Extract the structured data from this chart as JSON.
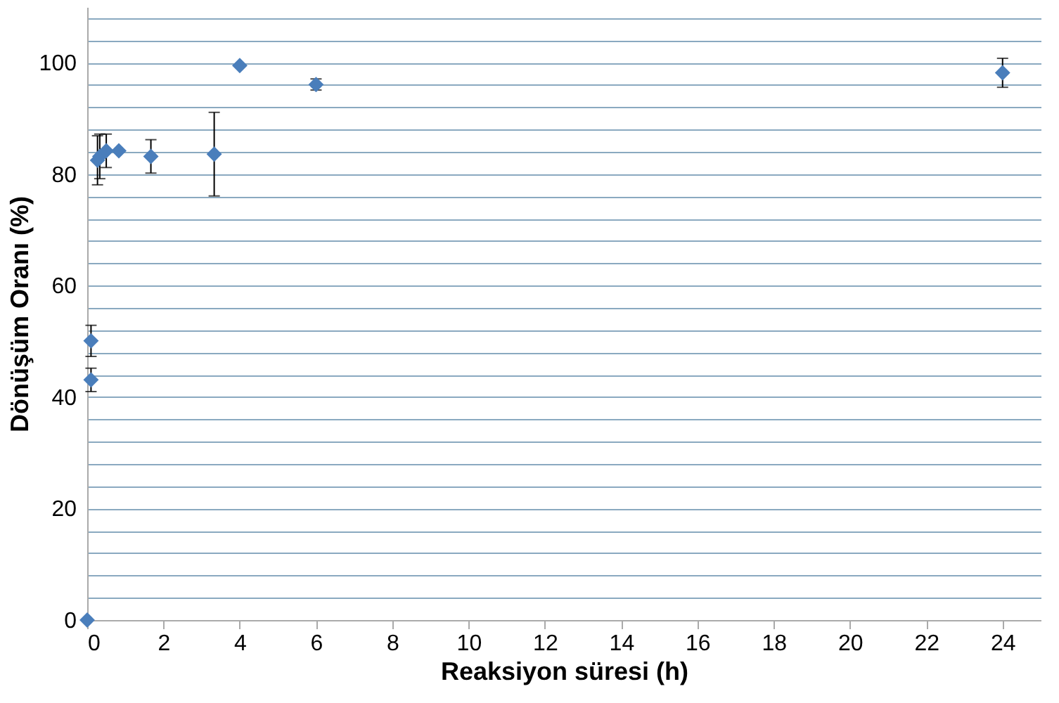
{
  "chart_data": {
    "type": "scatter",
    "xlabel": "Reaksiyon süresi (h)",
    "ylabel": "Dönüşüm Oranı (%)",
    "x": [
      0,
      0.1,
      0.1,
      0.27,
      0.33,
      0.5,
      0.83,
      1.67,
      3.33,
      4,
      6,
      24
    ],
    "series": [
      {
        "color": "#4a7ebb",
        "values": [
          0,
          50.1,
          43.1,
          82.5,
          83.2,
          84.2,
          84.2,
          83.2,
          83.6,
          99.5,
          96.1,
          98.2
        ],
        "errors": [
          null,
          2.8,
          2.1,
          4.4,
          4,
          3,
          null,
          3,
          7.5,
          null,
          1,
          2.6
        ]
      }
    ],
    "marker": "diamond",
    "grid": "y",
    "xlim": [
      0,
      25
    ],
    "xticks": [
      0,
      2,
      4,
      6,
      8,
      10,
      12,
      14,
      16,
      18,
      20,
      22,
      24
    ],
    "ylim": [
      0,
      110
    ],
    "yticks": [
      0,
      {
        "value": 4,
        "label": null
      },
      {
        "value": 8,
        "label": null
      },
      {
        "value": 12,
        "label": null
      },
      {
        "value": 16,
        "label": null
      },
      20,
      {
        "value": 24,
        "label": null
      },
      {
        "value": 28,
        "label": null
      },
      {
        "value": 32,
        "label": null
      },
      {
        "value": 36,
        "label": null
      },
      40,
      {
        "value": 44,
        "label": null
      },
      {
        "value": 48,
        "label": null
      },
      {
        "value": 52,
        "label": null
      },
      {
        "value": 56,
        "label": null
      },
      60,
      {
        "value": 64,
        "label": null
      },
      {
        "value": 68,
        "label": null
      },
      {
        "value": 72,
        "label": null
      },
      {
        "value": 76,
        "label": null
      },
      80,
      {
        "value": 84,
        "label": null
      },
      {
        "value": 88,
        "label": null
      },
      {
        "value": 92,
        "label": null
      },
      {
        "value": 96,
        "label": null
      },
      100,
      {
        "value": 104,
        "label": null
      },
      {
        "value": 108,
        "label": null
      }
    ]
  }
}
